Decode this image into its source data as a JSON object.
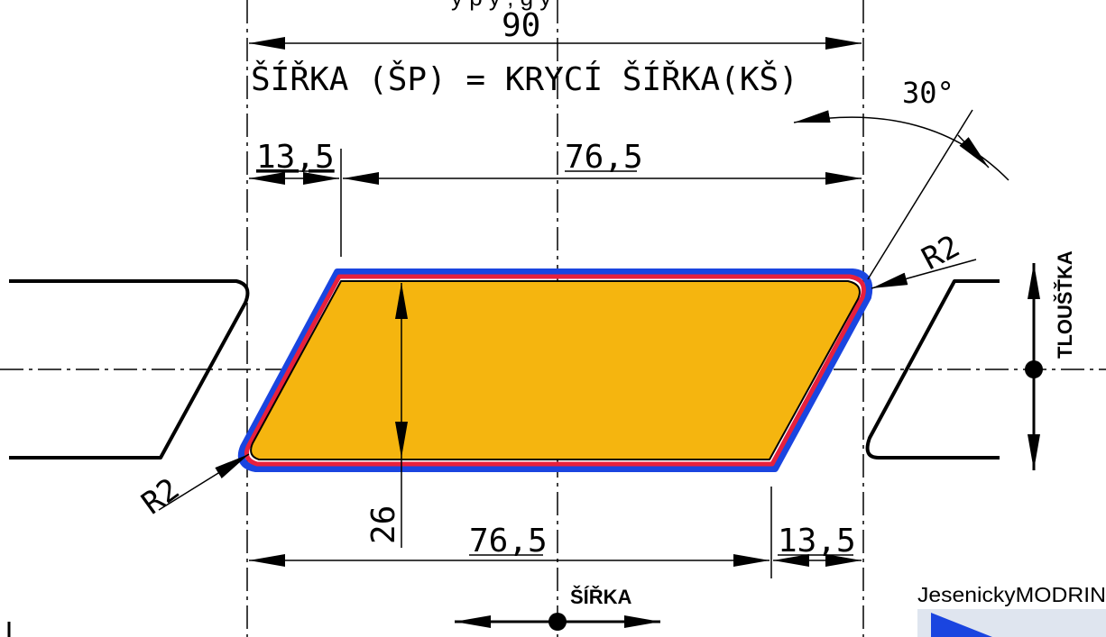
{
  "header_fragment": "y   p   y ,   g y",
  "dimensions": {
    "total_width": "90",
    "formula": "ŠÍŘKA  (ŠP)  =  KRYCÍ  ŠÍŘKA(KŠ)",
    "angle": "30°",
    "top_left_offset": "13,5",
    "top_face": "76,5",
    "bottom_face": "76,5",
    "bottom_right_offset": "13,5",
    "thickness": "26",
    "radius_right": "R2",
    "radius_left": "R2"
  },
  "labels": {
    "thickness_axis": "TLOUŠŤKA",
    "width_axis": "ŠÍŘKA"
  },
  "brand": {
    "name": "JesenickyMODRIN"
  },
  "colors": {
    "fill": "#F5B50F",
    "outer_outline": "#1A45E0",
    "inner_outline": "#E8203C",
    "line": "#000000"
  }
}
